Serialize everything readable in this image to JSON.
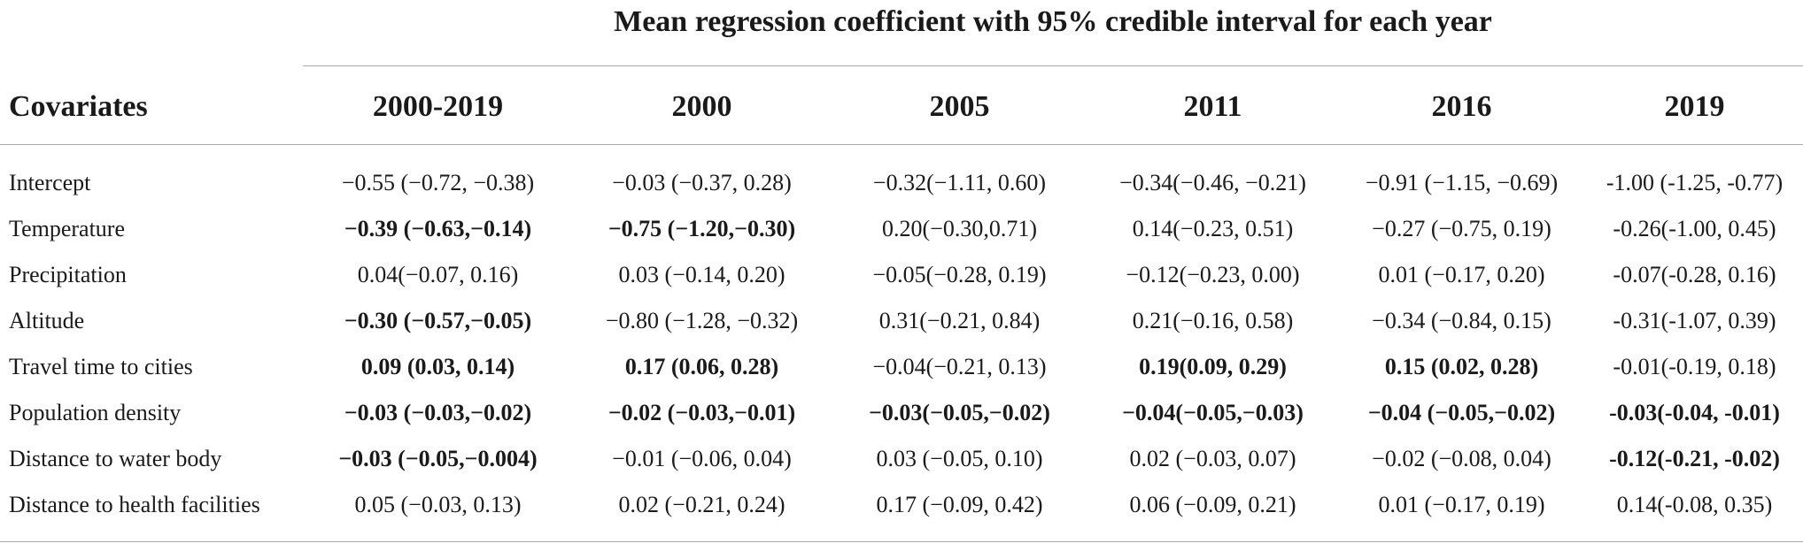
{
  "table": {
    "span_title": "Mean regression coefficient with 95% credible interval for each year",
    "headers": [
      "Covariates",
      "2000-2019",
      "2000",
      "2005",
      "2011",
      "2016",
      "2019"
    ],
    "rows": [
      {
        "covariate": "Intercept",
        "values": [
          "−0.55 (−0.72, −0.38)",
          "−0.03 (−0.37, 0.28)",
          "−0.32(−1.11, 0.60)",
          "−0.34(−0.46, −0.21)",
          "−0.91 (−1.15, −0.69)",
          "-1.00 (-1.25, -0.77)"
        ],
        "bold": [
          false,
          false,
          false,
          false,
          false,
          false
        ]
      },
      {
        "covariate": "Temperature",
        "values": [
          "−0.39 (−0.63,−0.14)",
          "−0.75 (−1.20,−0.30)",
          "0.20(−0.30,0.71)",
          "0.14(−0.23, 0.51)",
          "−0.27 (−0.75, 0.19)",
          "-0.26(-1.00, 0.45)"
        ],
        "bold": [
          true,
          true,
          false,
          false,
          false,
          false
        ]
      },
      {
        "covariate": "Precipitation",
        "values": [
          "0.04(−0.07, 0.16)",
          "0.03 (−0.14, 0.20)",
          "−0.05(−0.28, 0.19)",
          "−0.12(−0.23, 0.00)",
          "0.01 (−0.17, 0.20)",
          "-0.07(-0.28, 0.16)"
        ],
        "bold": [
          false,
          false,
          false,
          false,
          false,
          false
        ]
      },
      {
        "covariate": "Altitude",
        "values": [
          "−0.30 (−0.57,−0.05)",
          "−0.80 (−1.28, −0.32)",
          "0.31(−0.21, 0.84)",
          "0.21(−0.16, 0.58)",
          "−0.34 (−0.84, 0.15)",
          "-0.31(-1.07, 0.39)"
        ],
        "bold": [
          true,
          false,
          false,
          false,
          false,
          false
        ]
      },
      {
        "covariate": "Travel time to cities",
        "values": [
          "0.09 (0.03, 0.14)",
          "0.17 (0.06, 0.28)",
          "−0.04(−0.21, 0.13)",
          "0.19(0.09, 0.29)",
          "0.15 (0.02, 0.28)",
          "-0.01(-0.19, 0.18)"
        ],
        "bold": [
          true,
          true,
          false,
          true,
          true,
          false
        ]
      },
      {
        "covariate": "Population density",
        "values": [
          "−0.03 (−0.03,−0.02)",
          "−0.02 (−0.03,−0.01)",
          "−0.03(−0.05,−0.02)",
          "−0.04(−0.05,−0.03)",
          "−0.04 (−0.05,−0.02)",
          "-0.03(-0.04, -0.01)"
        ],
        "bold": [
          true,
          true,
          true,
          true,
          true,
          true
        ]
      },
      {
        "covariate": "Distance to water body",
        "values": [
          "−0.03 (−0.05,−0.004)",
          "−0.01 (−0.06, 0.04)",
          "0.03 (−0.05, 0.10)",
          "0.02 (−0.03, 0.07)",
          "−0.02 (−0.08, 0.04)",
          "-0.12(-0.21, -0.02)"
        ],
        "bold": [
          true,
          false,
          false,
          false,
          false,
          true
        ]
      },
      {
        "covariate": "Distance to health facilities",
        "values": [
          "0.05 (−0.03, 0.13)",
          "0.02 (−0.21, 0.24)",
          "0.17 (−0.09, 0.42)",
          "0.06 (−0.09, 0.21)",
          "0.01 (−0.17, 0.19)",
          "0.14(-0.08, 0.35)"
        ],
        "bold": [
          false,
          false,
          false,
          false,
          false,
          false
        ]
      }
    ]
  }
}
